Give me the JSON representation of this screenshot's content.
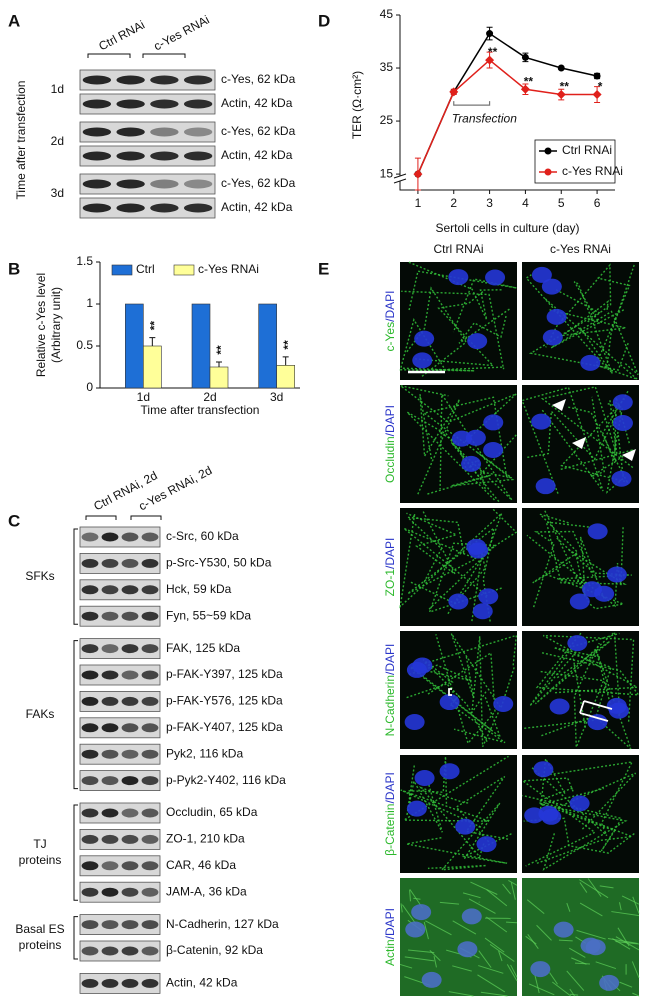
{
  "panel_a": {
    "label": "A",
    "columns": [
      "Ctrl RNAi",
      "c-Yes RNAi"
    ],
    "y_label": "Time after transfection",
    "rows": [
      {
        "time": "1d",
        "bands": [
          "c-Yes, 62 kDa",
          "Actin, 42 kDa"
        ]
      },
      {
        "time": "2d",
        "bands": [
          "c-Yes, 62 kDa",
          "Actin, 42 kDa"
        ]
      },
      {
        "time": "3d",
        "bands": [
          "c-Yes, 62 kDa",
          "Actin, 42 kDa"
        ]
      }
    ]
  },
  "chart_data": [
    {
      "type": "bar",
      "panel_label": "B",
      "y_label_lines": [
        "Relative c-Yes level",
        "(Arbitrary unit)"
      ],
      "x_label": "Time after transfection",
      "categories": [
        "1d",
        "2d",
        "3d"
      ],
      "series": [
        {
          "name": "Ctrl",
          "color": "#1e6fd6",
          "values": [
            1,
            1,
            1
          ],
          "errors": [
            0,
            0,
            0
          ]
        },
        {
          "name": "c-Yes RNAi",
          "color": "#ffff99",
          "values": [
            0.5,
            0.25,
            0.27
          ],
          "errors": [
            0.1,
            0.06,
            0.1
          ],
          "significance": [
            "**",
            "**",
            "**"
          ]
        }
      ],
      "ylim": [
        0,
        1.5
      ],
      "yticks": [
        0,
        0.5,
        1,
        1.5
      ],
      "legend": "top"
    },
    {
      "type": "line",
      "panel_label": "D",
      "y_label": "TER (Ω·cm²)",
      "x_label": "Sertoli cells in culture (day)",
      "x": [
        1,
        2,
        3,
        4,
        5,
        6
      ],
      "series": [
        {
          "name": "Ctrl RNAi",
          "color": "#000000",
          "values": [
            15,
            30.5,
            41.5,
            37,
            35,
            33.5
          ],
          "errors": [
            0,
            0,
            1.2,
            0.8,
            0,
            0.5
          ]
        },
        {
          "name": "c-Yes RNAi",
          "color": "#e0201b",
          "values": [
            15,
            30.5,
            36.5,
            31,
            30,
            30
          ],
          "errors": [
            3,
            0.5,
            1.5,
            1,
            1,
            1.5
          ],
          "significance": [
            null,
            null,
            "**",
            "**",
            "**",
            "*"
          ]
        }
      ],
      "xlim": [
        0.5,
        6.5
      ],
      "xticks": [
        1,
        2,
        3,
        4,
        5,
        6
      ],
      "ylim": [
        12,
        45
      ],
      "yticks": [
        15,
        25,
        35,
        45
      ],
      "annotation": {
        "text": "Transfection",
        "x_range": [
          2,
          3
        ],
        "y": 28
      },
      "legend": "lower right"
    }
  ],
  "panel_c": {
    "label": "C",
    "columns": [
      "Ctrl RNAi, 2d",
      "c-Yes RNAi, 2d"
    ],
    "groups": [
      {
        "name_lines": [
          "SFKs"
        ],
        "bands": [
          "c-Src, 60 kDa",
          "p-Src-Y530, 50 kDa",
          "Hck, 59 kDa",
          "Fyn, 55~59 kDa"
        ]
      },
      {
        "name_lines": [
          "FAKs"
        ],
        "bands": [
          "FAK, 125 kDa",
          "p-FAK-Y397, 125 kDa",
          "p-FAK-Y576, 125 kDa",
          "p-FAK-Y407, 125 kDa",
          "Pyk2, 116 kDa",
          "p-Pyk2-Y402, 116 kDa"
        ]
      },
      {
        "name_lines": [
          "TJ",
          "proteins"
        ],
        "bands": [
          "Occludin, 65 kDa",
          "ZO-1, 210 kDa",
          "CAR, 46 kDa",
          "JAM-A, 36 kDa"
        ]
      },
      {
        "name_lines": [
          "Basal ES",
          "proteins"
        ],
        "bands": [
          "N-Cadherin, 127 kDa",
          "β-Catenin, 92 kDa"
        ]
      }
    ],
    "loading_control": "Actin, 42 kDa"
  },
  "panel_e": {
    "label": "E",
    "columns": [
      "Ctrl RNAi",
      "c-Yes RNAi"
    ],
    "rows": [
      {
        "marker": "c-Yes",
        "counterstain": "/DAPI"
      },
      {
        "marker": "Occludin",
        "counterstain": "/DAPI"
      },
      {
        "marker": "ZO-1",
        "counterstain": "/DAPI"
      },
      {
        "marker": "N-Cadherin",
        "counterstain": "/DAPI"
      },
      {
        "marker": "β-Catenin",
        "counterstain": "/DAPI"
      },
      {
        "marker": "Actin",
        "counterstain": "/DAPI"
      }
    ]
  }
}
